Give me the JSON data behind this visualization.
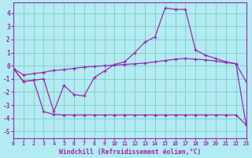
{
  "xlabel": "Windchill (Refroidissement éolien,°C)",
  "bg_color": "#b2ebf2",
  "line_color": "#9c27b0",
  "grid_color": "#80cbc4",
  "xlim": [
    0,
    23
  ],
  "ylim": [
    -5.5,
    4.8
  ],
  "xticks": [
    0,
    1,
    2,
    3,
    4,
    5,
    6,
    7,
    8,
    9,
    10,
    11,
    12,
    13,
    14,
    15,
    16,
    17,
    18,
    19,
    20,
    21,
    22,
    23
  ],
  "yticks": [
    -5,
    -4,
    -3,
    -2,
    -1,
    0,
    1,
    2,
    3,
    4
  ],
  "line1_x": [
    0,
    1,
    2,
    3,
    4,
    5,
    6,
    7,
    8,
    9,
    10,
    11,
    12,
    13,
    14,
    15,
    16,
    17,
    18,
    19,
    20,
    21,
    22,
    23
  ],
  "line1_y": [
    -0.2,
    -1.2,
    -1.1,
    -1.0,
    -3.5,
    -1.5,
    -2.2,
    -2.3,
    -0.9,
    -0.4,
    0.1,
    0.3,
    1.0,
    1.8,
    2.2,
    4.4,
    4.3,
    4.3,
    1.2,
    0.8,
    0.55,
    0.3,
    0.15,
    -4.5
  ],
  "line2_x": [
    0,
    1,
    2,
    3,
    4,
    5,
    6,
    7,
    8,
    9,
    10,
    11,
    12,
    13,
    14,
    15,
    16,
    17,
    18,
    19,
    20,
    21,
    22,
    23
  ],
  "line2_y": [
    -0.2,
    -1.2,
    -1.1,
    -3.5,
    -3.7,
    -3.75,
    -3.75,
    -3.75,
    -3.75,
    -3.75,
    -3.75,
    -3.75,
    -3.75,
    -3.75,
    -3.75,
    -3.75,
    -3.75,
    -3.75,
    -3.75,
    -3.75,
    -3.75,
    -3.75,
    -3.75,
    -4.5
  ],
  "line3_x": [
    0,
    1,
    2,
    3,
    4,
    5,
    6,
    7,
    8,
    9,
    10,
    11,
    12,
    13,
    14,
    15,
    16,
    17,
    18,
    19,
    20,
    21,
    22,
    23
  ],
  "line3_y": [
    -0.2,
    -0.7,
    -0.6,
    -0.5,
    -0.35,
    -0.3,
    -0.2,
    -0.1,
    -0.05,
    0.0,
    0.05,
    0.1,
    0.15,
    0.2,
    0.3,
    0.4,
    0.5,
    0.55,
    0.5,
    0.45,
    0.35,
    0.25,
    0.15,
    -1.2
  ]
}
